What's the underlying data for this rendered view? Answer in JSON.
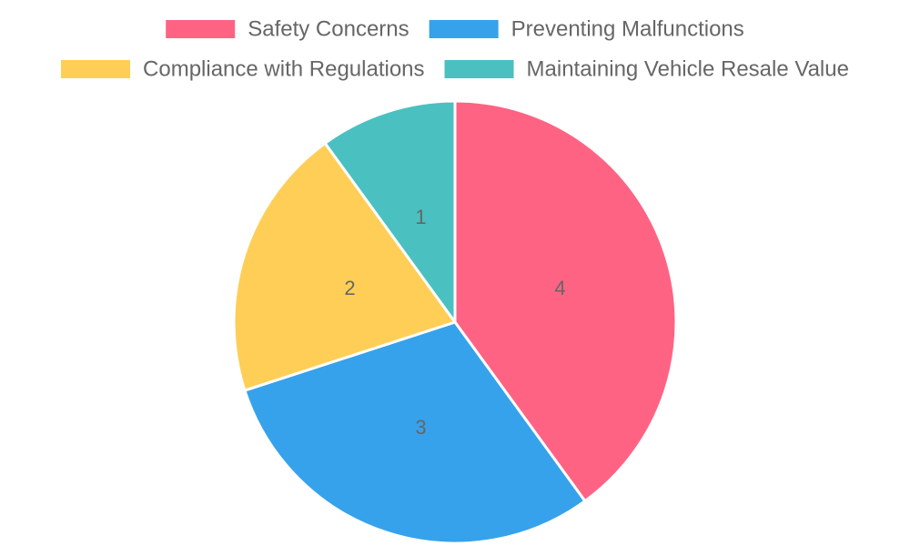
{
  "chart_data": {
    "type": "pie",
    "categories": [
      "Safety Concerns",
      "Preventing Malfunctions",
      "Compliance with Regulations",
      "Maintaining Vehicle Resale Value"
    ],
    "values": [
      4,
      3,
      2,
      1
    ],
    "colors": [
      "#ff6384",
      "#36a2eb",
      "#ffce56",
      "#4bc0c0"
    ],
    "legend_position": "top",
    "start_angle_deg": -90,
    "direction": "clockwise"
  }
}
